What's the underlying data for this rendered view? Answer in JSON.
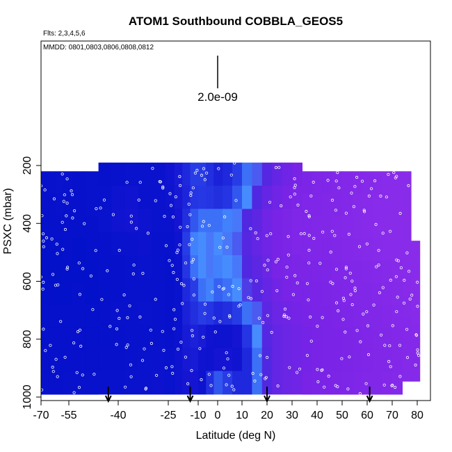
{
  "chart_data": {
    "type": "heatmap",
    "title": "ATOM1 Southbound COBBLA_GEOS5",
    "flights_note": "Flts: 2,3,4,5,6",
    "dates_note": "MMDD: 0801,0803,0806,0808,0812",
    "xlabel": "Latitude (deg N)",
    "ylabel": "PSXC (mbar)",
    "xlim": [
      -70,
      85
    ],
    "ylim": [
      1000,
      150
    ],
    "x_ticks": [
      -70,
      -55,
      -40,
      -25,
      -10,
      0,
      10,
      20,
      30,
      40,
      50,
      60,
      70,
      80
    ],
    "y_ticks": [
      200,
      400,
      600,
      800,
      1000
    ],
    "scale_bar_label": "2.0e-09",
    "arrow_latitudes": [
      -43,
      -14,
      20,
      61
    ],
    "colormap_hint": "dark blue (low) to violet (high); bright blue core near equator at surface",
    "colors": {
      "low": "#0010c8",
      "mid": "#3a1ad8",
      "high": "#8a2be2",
      "hot": "#4c8cff"
    },
    "columns": [
      {
        "lat": -68,
        "top": 220,
        "bottom": 990,
        "v": [
          0.05,
          0.05,
          0.04,
          0.03,
          0.02,
          0.03,
          0.04,
          0.04,
          0.05,
          0.05
        ]
      },
      {
        "lat": -64,
        "top": 220,
        "bottom": 990,
        "v": [
          0.06,
          0.05,
          0.04,
          0.03,
          0.02,
          0.03,
          0.04,
          0.05,
          0.05,
          0.05
        ]
      },
      {
        "lat": -60,
        "top": 220,
        "bottom": 990,
        "v": [
          0.07,
          0.06,
          0.05,
          0.03,
          0.02,
          0.03,
          0.04,
          0.05,
          0.05,
          0.05
        ]
      },
      {
        "lat": -56,
        "top": 220,
        "bottom": 990,
        "v": [
          0.06,
          0.05,
          0.05,
          0.04,
          0.03,
          0.03,
          0.04,
          0.05,
          0.05,
          0.06
        ]
      },
      {
        "lat": -52,
        "top": 220,
        "bottom": 990,
        "v": [
          0.05,
          0.05,
          0.04,
          0.03,
          0.03,
          0.04,
          0.04,
          0.05,
          0.05,
          0.06
        ]
      },
      {
        "lat": -48,
        "top": 220,
        "bottom": 990,
        "v": [
          0.06,
          0.06,
          0.05,
          0.04,
          0.03,
          0.03,
          0.04,
          0.04,
          0.05,
          0.06
        ]
      },
      {
        "lat": -44,
        "top": 190,
        "bottom": 990,
        "v": [
          0.05,
          0.06,
          0.07,
          0.05,
          0.04,
          0.04,
          0.05,
          0.04,
          0.05,
          0.06
        ]
      },
      {
        "lat": -40,
        "top": 190,
        "bottom": 990,
        "v": [
          0.06,
          0.1,
          0.12,
          0.07,
          0.05,
          0.05,
          0.06,
          0.05,
          0.05,
          0.06
        ]
      },
      {
        "lat": -36,
        "top": 190,
        "bottom": 990,
        "v": [
          0.07,
          0.12,
          0.14,
          0.08,
          0.06,
          0.06,
          0.06,
          0.06,
          0.06,
          0.07
        ]
      },
      {
        "lat": -32,
        "top": 190,
        "bottom": 990,
        "v": [
          0.07,
          0.08,
          0.1,
          0.09,
          0.07,
          0.06,
          0.07,
          0.06,
          0.07,
          0.08
        ]
      },
      {
        "lat": -28,
        "top": 190,
        "bottom": 990,
        "v": [
          0.08,
          0.08,
          0.07,
          0.06,
          0.06,
          0.06,
          0.06,
          0.06,
          0.08,
          0.09
        ]
      },
      {
        "lat": -24,
        "top": 190,
        "bottom": 990,
        "v": [
          0.12,
          0.1,
          0.08,
          0.06,
          0.05,
          0.05,
          0.05,
          0.05,
          0.06,
          0.07
        ]
      },
      {
        "lat": -20,
        "top": 190,
        "bottom": 990,
        "v": [
          0.2,
          0.18,
          0.15,
          0.1,
          0.08,
          0.07,
          0.07,
          0.08,
          0.1,
          0.1
        ]
      },
      {
        "lat": -16,
        "top": 190,
        "bottom": 990,
        "v": [
          0.3,
          0.28,
          0.35,
          0.45,
          0.4,
          0.3,
          0.25,
          0.2,
          0.18,
          0.15
        ]
      },
      {
        "lat": -12,
        "top": 190,
        "bottom": 990,
        "v": [
          0.45,
          0.4,
          0.5,
          0.58,
          0.55,
          0.45,
          0.35,
          0.25,
          0.2,
          0.15
        ]
      },
      {
        "lat": -8,
        "top": 190,
        "bottom": 990,
        "v": [
          0.45,
          0.42,
          0.55,
          0.6,
          0.6,
          0.55,
          0.45,
          0.2,
          0.12,
          0.1
        ]
      },
      {
        "lat": -4,
        "top": 190,
        "bottom": 990,
        "v": [
          0.35,
          0.4,
          0.55,
          0.62,
          0.62,
          0.58,
          0.4,
          0.12,
          0.1,
          0.35
        ]
      },
      {
        "lat": 0,
        "top": 190,
        "bottom": 990,
        "v": [
          0.25,
          0.35,
          0.55,
          0.6,
          0.58,
          0.52,
          0.3,
          0.1,
          0.15,
          0.5
        ]
      },
      {
        "lat": 4,
        "top": 190,
        "bottom": 990,
        "v": [
          0.3,
          0.4,
          0.58,
          0.62,
          0.6,
          0.55,
          0.35,
          0.1,
          0.15,
          0.45
        ]
      },
      {
        "lat": 8,
        "top": 190,
        "bottom": 990,
        "v": [
          0.45,
          0.5,
          0.62,
          0.65,
          0.62,
          0.6,
          0.45,
          0.15,
          0.12,
          0.3
        ]
      },
      {
        "lat": 12,
        "top": 190,
        "bottom": 990,
        "v": [
          0.55,
          0.6,
          0.7,
          0.72,
          0.7,
          0.68,
          0.55,
          0.4,
          0.3,
          0.3
        ]
      },
      {
        "lat": 16,
        "top": 190,
        "bottom": 990,
        "v": [
          0.65,
          0.7,
          0.75,
          0.78,
          0.75,
          0.72,
          0.65,
          0.6,
          0.55,
          0.55
        ]
      },
      {
        "lat": 20,
        "top": 190,
        "bottom": 990,
        "v": [
          0.72,
          0.78,
          0.82,
          0.82,
          0.8,
          0.78,
          0.75,
          0.72,
          0.7,
          0.7
        ]
      },
      {
        "lat": 24,
        "top": 190,
        "bottom": 990,
        "v": [
          0.78,
          0.82,
          0.85,
          0.85,
          0.85,
          0.82,
          0.8,
          0.78,
          0.78,
          0.78
        ]
      },
      {
        "lat": 28,
        "top": 190,
        "bottom": 990,
        "v": [
          0.82,
          0.85,
          0.88,
          0.88,
          0.86,
          0.85,
          0.82,
          0.8,
          0.8,
          0.8
        ]
      },
      {
        "lat": 32,
        "top": 190,
        "bottom": 990,
        "v": [
          0.85,
          0.88,
          0.9,
          0.9,
          0.88,
          0.86,
          0.84,
          0.82,
          0.82,
          0.82
        ]
      },
      {
        "lat": 36,
        "top": 220,
        "bottom": 990,
        "v": [
          0.88,
          0.9,
          0.9,
          0.9,
          0.88,
          0.86,
          0.85,
          0.84,
          0.84,
          0.85
        ]
      },
      {
        "lat": 40,
        "top": 220,
        "bottom": 990,
        "v": [
          0.9,
          0.9,
          0.92,
          0.9,
          0.88,
          0.87,
          0.86,
          0.85,
          0.85,
          0.86
        ]
      },
      {
        "lat": 44,
        "top": 220,
        "bottom": 990,
        "v": [
          0.9,
          0.92,
          0.92,
          0.9,
          0.89,
          0.88,
          0.87,
          0.86,
          0.86,
          0.87
        ]
      },
      {
        "lat": 48,
        "top": 220,
        "bottom": 990,
        "v": [
          0.92,
          0.92,
          0.93,
          0.92,
          0.9,
          0.89,
          0.88,
          0.87,
          0.87,
          0.88
        ]
      },
      {
        "lat": 52,
        "top": 220,
        "bottom": 990,
        "v": [
          0.93,
          0.93,
          0.94,
          0.93,
          0.91,
          0.9,
          0.89,
          0.88,
          0.88,
          0.89
        ]
      },
      {
        "lat": 56,
        "top": 220,
        "bottom": 990,
        "v": [
          0.94,
          0.95,
          0.95,
          0.94,
          0.92,
          0.91,
          0.9,
          0.89,
          0.89,
          0.9
        ]
      },
      {
        "lat": 60,
        "top": 220,
        "bottom": 990,
        "v": [
          0.95,
          0.96,
          0.96,
          0.95,
          0.93,
          0.92,
          0.91,
          0.9,
          0.9,
          0.91
        ]
      },
      {
        "lat": 64,
        "top": 220,
        "bottom": 990,
        "v": [
          0.96,
          0.97,
          0.97,
          0.96,
          0.94,
          0.93,
          0.92,
          0.91,
          0.91,
          0.92
        ]
      },
      {
        "lat": 68,
        "top": 220,
        "bottom": 990,
        "v": [
          0.97,
          0.97,
          0.98,
          0.97,
          0.95,
          0.94,
          0.93,
          0.92,
          0.92,
          0.93
        ]
      },
      {
        "lat": 72,
        "top": 220,
        "bottom": 990,
        "v": [
          0.97,
          0.98,
          0.98,
          0.97,
          0.96,
          0.95,
          0.94,
          0.93,
          0.93,
          0.94
        ]
      },
      {
        "lat": 76,
        "top": 220,
        "bottom": 945,
        "v": [
          0.98,
          0.98,
          0.98,
          0.98,
          0.97,
          0.96,
          0.95,
          0.94,
          0.94,
          0.95
        ]
      },
      {
        "lat": 79,
        "top": 460,
        "bottom": 945,
        "v": [
          0.98,
          0.98,
          0.98,
          0.98,
          0.97,
          0.96,
          0.95,
          0.94,
          0.94,
          0.95
        ]
      }
    ],
    "sample_points_hint": "hundreds of small white circles marking observation locations scattered across the domain"
  }
}
